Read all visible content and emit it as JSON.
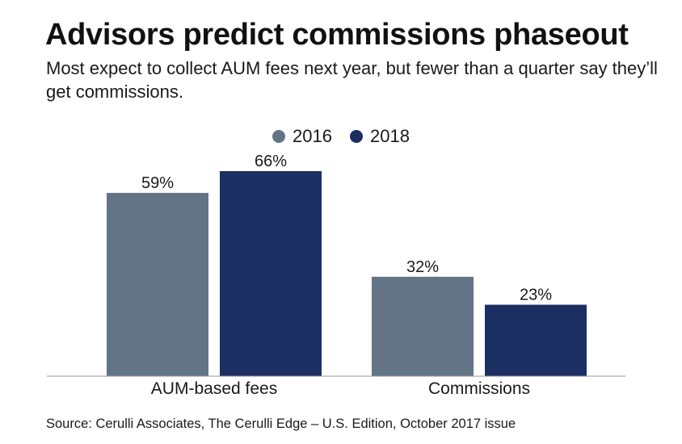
{
  "chart_data": {
    "type": "bar",
    "title": "Advisors predict commissions phaseout",
    "subtitle": "Most expect to collect AUM fees next year, but fewer than a quarter say they’ll get commissions.",
    "categories": [
      "AUM-based fees",
      "Commissions"
    ],
    "series": [
      {
        "name": "2016",
        "color": "#637487",
        "values": [
          59,
          32
        ],
        "labels": [
          "59%",
          "32%"
        ]
      },
      {
        "name": "2018",
        "color": "#1b2f62",
        "values": [
          66,
          23
        ],
        "labels": [
          "66%",
          "23%"
        ]
      }
    ],
    "ylim": [
      0,
      66
    ],
    "xlabel": "",
    "ylabel": "",
    "legend": "top-center",
    "grid": false
  },
  "source": "Source: Cerulli Associates, The Cerulli Edge – U.S. Edition, October 2017 issue"
}
